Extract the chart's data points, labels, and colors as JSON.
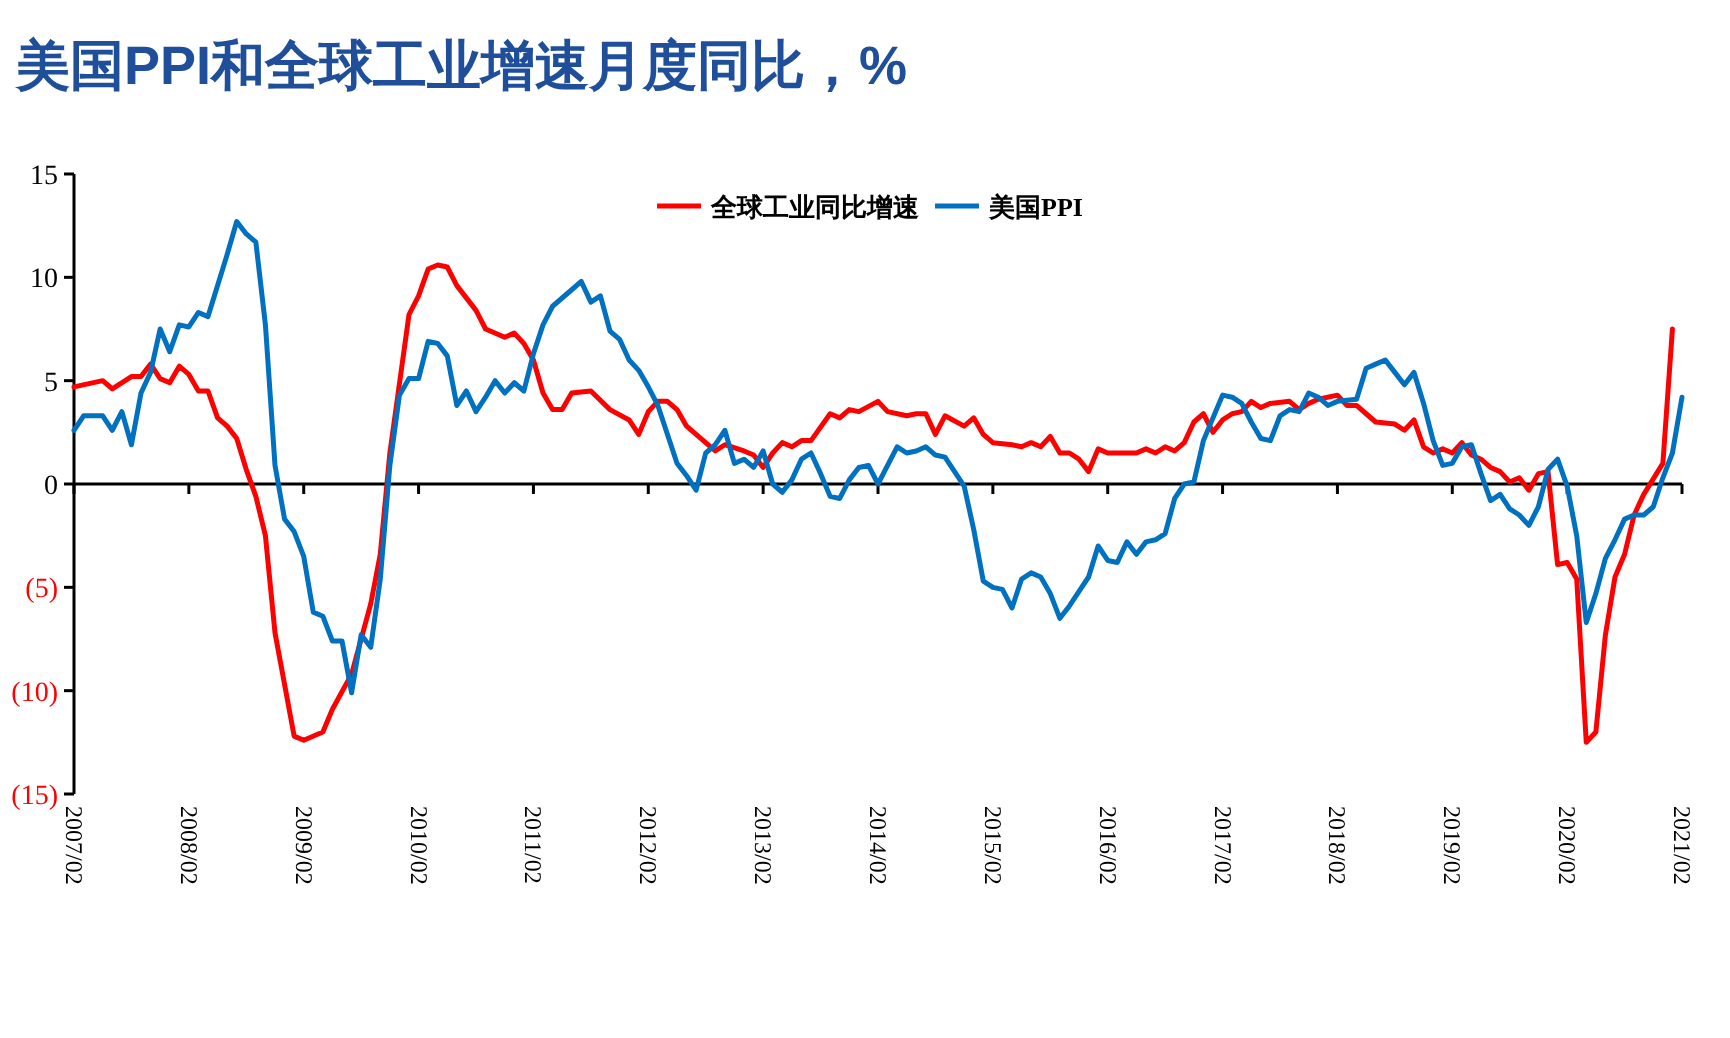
{
  "chart_data": {
    "type": "line",
    "title": "美国PPI和全球工业增速月度同比，%",
    "xlim": [
      "2007-02",
      "2021-02"
    ],
    "xticks": [
      {
        "value": "2007-02",
        "label": "2007/02"
      },
      {
        "value": "2008-02",
        "label": "2008/02"
      },
      {
        "value": "2009-02",
        "label": "2009/02"
      },
      {
        "value": "2010-02",
        "label": "2010/02"
      },
      {
        "value": "2011-02",
        "label": "2011/02"
      },
      {
        "value": "2012-02",
        "label": "2012/02"
      },
      {
        "value": "2013-02",
        "label": "2013/02"
      },
      {
        "value": "2014-02",
        "label": "2014/02"
      },
      {
        "value": "2015-02",
        "label": "2015/02"
      },
      {
        "value": "2016-02",
        "label": "2016/02"
      },
      {
        "value": "2017-02",
        "label": "2017/02"
      },
      {
        "value": "2018-02",
        "label": "2018/02"
      },
      {
        "value": "2019-02",
        "label": "2019/02"
      },
      {
        "value": "2020-02",
        "label": "2020/02"
      },
      {
        "value": "2021-02",
        "label": "2021/02"
      }
    ],
    "ylim": [
      -15,
      15
    ],
    "yticks": [
      15,
      10,
      5,
      0,
      {
        "value": -5,
        "label": "(5)"
      },
      {
        "value": -10,
        "label": "(10)"
      },
      {
        "value": -15,
        "label": "(15)"
      }
    ],
    "legend": "top",
    "marker": "none",
    "line_style": "solid",
    "series": [
      {
        "name": "全球工业同比增速",
        "color": "#ff0000",
        "x": [
          "2007-02",
          "2007-05",
          "2007-06",
          "2007-08",
          "2007-09",
          "2007-10",
          "2007-11",
          "2007-12",
          "2008-01",
          "2008-02",
          "2008-03",
          "2008-04",
          "2008-05",
          "2008-06",
          "2008-07",
          "2008-08",
          "2008-09",
          "2008-10",
          "2008-11",
          "2009-01",
          "2009-02",
          "2009-04",
          "2009-05",
          "2009-07",
          "2009-09",
          "2009-10",
          "2009-11",
          "2010-01",
          "2010-02",
          "2010-03",
          "2010-04",
          "2010-05",
          "2010-06",
          "2010-08",
          "2010-09",
          "2010-11",
          "2010-12",
          "2011-01",
          "2011-02",
          "2011-03",
          "2011-04",
          "2011-05",
          "2011-06",
          "2011-08",
          "2011-10",
          "2011-12",
          "2012-01",
          "2012-02",
          "2012-03",
          "2012-04",
          "2012-05",
          "2012-06",
          "2012-07",
          "2012-09",
          "2012-10",
          "2012-12",
          "2013-01",
          "2013-02",
          "2013-03",
          "2013-04",
          "2013-05",
          "2013-06",
          "2013-07",
          "2013-09",
          "2013-10",
          "2013-11",
          "2013-12",
          "2014-02",
          "2014-03",
          "2014-05",
          "2014-06",
          "2014-07",
          "2014-08",
          "2014-09",
          "2014-11",
          "2014-12",
          "2015-01",
          "2015-02",
          "2015-04",
          "2015-05",
          "2015-06",
          "2015-07",
          "2015-08",
          "2015-09",
          "2015-10",
          "2015-11",
          "2015-12",
          "2016-01",
          "2016-02",
          "2016-04",
          "2016-05",
          "2016-06",
          "2016-07",
          "2016-08",
          "2016-09",
          "2016-10",
          "2016-11",
          "2016-12",
          "2017-01",
          "2017-02",
          "2017-03",
          "2017-04",
          "2017-05",
          "2017-06",
          "2017-07",
          "2017-09",
          "2017-10",
          "2017-11",
          "2017-12",
          "2018-02",
          "2018-03",
          "2018-04",
          "2018-05",
          "2018-06",
          "2018-08",
          "2018-09",
          "2018-10",
          "2018-11",
          "2018-12",
          "2019-01",
          "2019-02",
          "2019-03",
          "2019-04",
          "2019-05",
          "2019-06",
          "2019-07",
          "2019-08",
          "2019-09",
          "2019-10",
          "2019-11",
          "2019-12",
          "2020-01",
          "2020-02",
          "2020-03",
          "2020-04",
          "2020-05",
          "2020-06",
          "2020-07",
          "2020-08",
          "2020-09",
          "2020-10",
          "2020-12",
          "2021-01"
        ],
        "values": [
          4.7,
          5.0,
          4.6,
          5.2,
          5.2,
          5.8,
          5.1,
          4.9,
          5.7,
          5.3,
          4.5,
          4.5,
          3.2,
          2.8,
          2.2,
          0.7,
          -0.6,
          -2.5,
          -7.2,
          -12.2,
          -12.4,
          -12.0,
          -10.9,
          -9.2,
          -5.8,
          -3.4,
          1.5,
          8.2,
          9.1,
          10.4,
          10.6,
          10.5,
          9.6,
          8.4,
          7.5,
          7.1,
          7.3,
          6.8,
          6.0,
          4.4,
          3.6,
          3.6,
          4.4,
          4.5,
          3.6,
          3.1,
          2.4,
          3.5,
          4.0,
          4.0,
          3.6,
          2.8,
          2.4,
          1.6,
          1.9,
          1.6,
          1.4,
          0.8,
          1.5,
          2.0,
          1.8,
          2.1,
          2.1,
          3.4,
          3.2,
          3.6,
          3.5,
          4.0,
          3.5,
          3.3,
          3.4,
          3.4,
          2.4,
          3.3,
          2.8,
          3.2,
          2.4,
          2.0,
          1.9,
          1.8,
          2.0,
          1.8,
          2.3,
          1.5,
          1.5,
          1.2,
          0.6,
          1.7,
          1.5,
          1.5,
          1.5,
          1.7,
          1.5,
          1.8,
          1.6,
          2.0,
          3.0,
          3.4,
          2.5,
          3.1,
          3.4,
          3.5,
          4.0,
          3.7,
          3.9,
          4.0,
          3.6,
          3.9,
          4.1,
          4.3,
          3.8,
          3.8,
          3.4,
          3.0,
          2.9,
          2.6,
          3.1,
          1.8,
          1.5,
          1.7,
          1.5,
          2.0,
          1.4,
          1.2,
          0.8,
          0.6,
          0.1,
          0.3,
          -0.3,
          0.5,
          0.6,
          -3.9,
          -3.8,
          -4.6,
          -12.5,
          -12.0,
          -7.3,
          -4.5,
          -3.4,
          -1.5,
          -0.5,
          1.0,
          7.5
        ]
      },
      {
        "name": "美国PPI",
        "color": "#0070c0",
        "x": [
          "2007-02",
          "2007-03",
          "2007-04",
          "2007-05",
          "2007-06",
          "2007-07",
          "2007-08",
          "2007-09",
          "2007-10",
          "2007-11",
          "2007-12",
          "2008-01",
          "2008-02",
          "2008-03",
          "2008-04",
          "2008-05",
          "2008-06",
          "2008-07",
          "2008-08",
          "2008-09",
          "2008-10",
          "2008-11",
          "2008-12",
          "2009-01",
          "2009-02",
          "2009-03",
          "2009-04",
          "2009-05",
          "2009-06",
          "2009-07",
          "2009-08",
          "2009-09",
          "2009-10",
          "2009-11",
          "2009-12",
          "2010-01",
          "2010-02",
          "2010-03",
          "2010-04",
          "2010-05",
          "2010-06",
          "2010-07",
          "2010-08",
          "2010-09",
          "2010-10",
          "2010-11",
          "2010-12",
          "2011-01",
          "2011-02",
          "2011-03",
          "2011-04",
          "2011-05",
          "2011-06",
          "2011-07",
          "2011-08",
          "2011-09",
          "2011-10",
          "2011-11",
          "2011-12",
          "2012-01",
          "2012-02",
          "2012-03",
          "2012-05",
          "2012-06",
          "2012-07",
          "2012-08",
          "2012-09",
          "2012-10",
          "2012-11",
          "2012-12",
          "2013-01",
          "2013-02",
          "2013-03",
          "2013-04",
          "2013-05",
          "2013-06",
          "2013-07",
          "2013-08",
          "2013-09",
          "2013-10",
          "2013-11",
          "2013-12",
          "2014-01",
          "2014-02",
          "2014-03",
          "2014-04",
          "2014-05",
          "2014-06",
          "2014-07",
          "2014-08",
          "2014-09",
          "2014-10",
          "2014-11",
          "2014-12",
          "2015-01",
          "2015-02",
          "2015-03",
          "2015-04",
          "2015-05",
          "2015-06",
          "2015-07",
          "2015-08",
          "2015-09",
          "2015-10",
          "2015-11",
          "2015-12",
          "2016-01",
          "2016-02",
          "2016-03",
          "2016-04",
          "2016-05",
          "2016-06",
          "2016-07",
          "2016-08",
          "2016-09",
          "2016-10",
          "2016-11",
          "2016-12",
          "2017-02",
          "2017-03",
          "2017-04",
          "2017-05",
          "2017-06",
          "2017-07",
          "2017-08",
          "2017-09",
          "2017-10",
          "2017-11",
          "2017-12",
          "2018-01",
          "2018-02",
          "2018-04",
          "2018-05",
          "2018-06",
          "2018-07",
          "2018-08",
          "2018-09",
          "2018-10",
          "2018-11",
          "2018-12",
          "2019-01",
          "2019-02",
          "2019-03",
          "2019-04",
          "2019-05",
          "2019-06",
          "2019-07",
          "2019-08",
          "2019-09",
          "2019-10",
          "2019-11",
          "2019-12",
          "2020-01",
          "2020-02",
          "2020-03",
          "2020-04",
          "2020-05",
          "2020-06",
          "2020-07",
          "2020-08",
          "2020-09",
          "2020-10",
          "2020-11",
          "2020-12",
          "2021-01",
          "2021-02"
        ],
        "values": [
          2.6,
          3.3,
          3.3,
          3.3,
          2.6,
          3.5,
          1.9,
          4.4,
          5.4,
          7.5,
          6.4,
          7.7,
          7.6,
          8.3,
          8.1,
          9.6,
          11.1,
          12.7,
          12.1,
          11.7,
          7.7,
          0.9,
          -1.7,
          -2.3,
          -3.5,
          -6.2,
          -6.4,
          -7.6,
          -7.6,
          -10.1,
          -7.3,
          -7.9,
          -4.6,
          0.9,
          4.3,
          5.1,
          5.1,
          6.9,
          6.8,
          6.2,
          3.8,
          4.5,
          3.5,
          4.2,
          5.0,
          4.4,
          4.9,
          4.5,
          6.3,
          7.7,
          8.6,
          9.0,
          9.4,
          9.8,
          8.8,
          9.1,
          7.4,
          7.0,
          6.0,
          5.5,
          4.7,
          3.8,
          1.0,
          0.4,
          -0.3,
          1.5,
          1.9,
          2.6,
          1.0,
          1.2,
          0.8,
          1.6,
          0.0,
          -0.4,
          0.2,
          1.2,
          1.5,
          0.5,
          -0.6,
          -0.7,
          0.2,
          0.8,
          0.9,
          0.0,
          0.9,
          1.8,
          1.5,
          1.6,
          1.8,
          1.4,
          1.3,
          0.6,
          -0.1,
          -2.2,
          -4.7,
          -5.0,
          -5.1,
          -6.0,
          -4.6,
          -4.3,
          -4.5,
          -5.3,
          -6.5,
          -5.9,
          -5.2,
          -4.5,
          -3.0,
          -3.7,
          -3.8,
          -2.8,
          -3.4,
          -2.8,
          -2.7,
          -2.4,
          -0.7,
          0.0,
          0.1,
          2.1,
          4.3,
          4.2,
          3.9,
          3.0,
          2.2,
          2.1,
          3.3,
          3.6,
          3.5,
          4.4,
          4.2,
          3.8,
          4.0,
          4.1,
          5.6,
          5.8,
          6.0,
          5.4,
          4.8,
          5.4,
          3.9,
          2.1,
          0.9,
          1.0,
          1.8,
          1.9,
          0.5,
          -0.8,
          -0.5,
          -1.2,
          -1.5,
          -2.0,
          -1.1,
          0.7,
          1.2,
          -0.1,
          -2.5,
          -6.7,
          -5.3,
          -3.6,
          -2.7,
          -1.7,
          -1.5,
          -1.5,
          -1.1,
          0.3,
          1.5,
          4.2
        ]
      }
    ]
  }
}
